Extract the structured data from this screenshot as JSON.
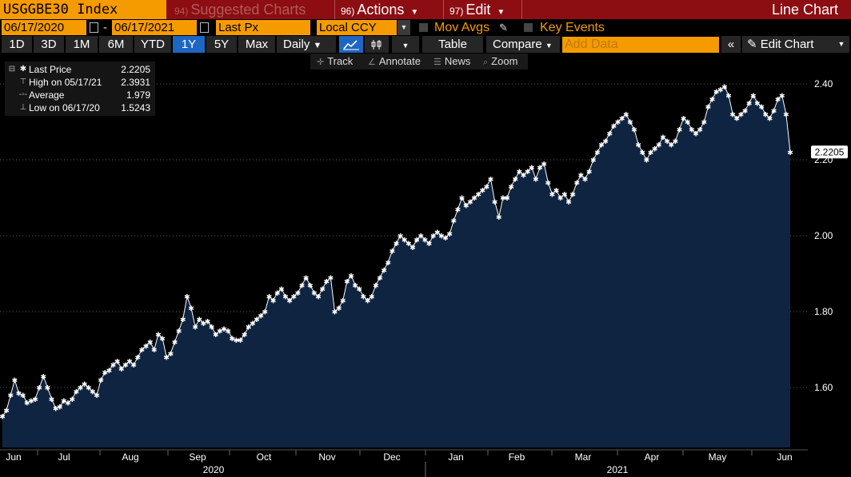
{
  "header": {
    "ticker": "USGGBE30 Index",
    "suggested": {
      "num": "94)",
      "label": "Suggested Charts"
    },
    "actions": {
      "num": "96)",
      "label": "Actions"
    },
    "edit": {
      "num": "97)",
      "label": "Edit"
    },
    "chart_type": "Line Chart"
  },
  "date_bar": {
    "start_date": "06/17/2020",
    "end_date": "06/17/2021",
    "field": "Last Px",
    "currency": "Local CCY",
    "mov_avgs": "Mov Avgs",
    "key_events": "Key Events"
  },
  "range_bar": {
    "buttons": [
      "1D",
      "3D",
      "1M",
      "6M",
      "YTD",
      "1Y",
      "5Y",
      "Max"
    ],
    "active": "1Y",
    "frequency": "Daily",
    "table": "Table",
    "compare": "Compare",
    "add_data_placeholder": "Add Data",
    "edit_chart": "Edit Chart"
  },
  "tools": [
    "Track",
    "Annotate",
    "News",
    "Zoom"
  ],
  "legend": {
    "rows": [
      {
        "label": "Last Price",
        "value": "2.2205"
      },
      {
        "label": "High on 05/17/21",
        "value": "2.3931"
      },
      {
        "label": "Average",
        "value": "1.979"
      },
      {
        "label": "Low on 06/17/20",
        "value": "1.5243"
      }
    ]
  },
  "last_value_label": "2.2205",
  "colors": {
    "header_bg": "#8c0d12",
    "field_orange": "#f59b00",
    "area_fill": "#0f2440",
    "line": "#ffffff",
    "active_button": "#1e66c4"
  },
  "chart_data": {
    "type": "area",
    "title": "USGGBE30 Index",
    "xlabel": "",
    "ylabel": "",
    "ylim": [
      1.45,
      2.47
    ],
    "yticks": [
      "1.60",
      "1.80",
      "2.00",
      "2.20",
      "2.40"
    ],
    "xticks": [
      "Jun",
      "Jul",
      "Aug",
      "Sep",
      "Oct",
      "Nov",
      "Dec",
      "Jan",
      "Feb",
      "Mar",
      "Apr",
      "May",
      "Jun"
    ],
    "year_labels": [
      "2020",
      "2021"
    ],
    "grid": true,
    "series": [
      {
        "values": [
          1.524,
          1.54,
          1.58,
          1.62,
          1.585,
          1.58,
          1.56,
          1.565,
          1.57,
          1.6,
          1.63,
          1.6,
          1.57,
          1.545,
          1.55,
          1.565,
          1.56,
          1.57,
          1.59,
          1.6,
          1.61,
          1.6,
          1.59,
          1.58,
          1.62,
          1.64,
          1.645,
          1.66,
          1.67,
          1.65,
          1.66,
          1.67,
          1.66,
          1.68,
          1.7,
          1.71,
          1.72,
          1.7,
          1.74,
          1.73,
          1.68,
          1.69,
          1.72,
          1.75,
          1.78,
          1.84,
          1.81,
          1.76,
          1.78,
          1.77,
          1.775,
          1.76,
          1.74,
          1.75,
          1.755,
          1.75,
          1.73,
          1.725,
          1.725,
          1.74,
          1.76,
          1.77,
          1.78,
          1.79,
          1.8,
          1.84,
          1.83,
          1.85,
          1.86,
          1.84,
          1.83,
          1.84,
          1.85,
          1.87,
          1.89,
          1.87,
          1.85,
          1.84,
          1.86,
          1.88,
          1.89,
          1.8,
          1.81,
          1.83,
          1.88,
          1.895,
          1.87,
          1.86,
          1.84,
          1.83,
          1.84,
          1.87,
          1.89,
          1.91,
          1.93,
          1.96,
          1.98,
          2.0,
          1.99,
          1.98,
          1.97,
          1.99,
          2.0,
          1.99,
          1.98,
          2.0,
          2.01,
          2.0,
          1.995,
          2.005,
          2.04,
          2.07,
          2.1,
          2.08,
          2.09,
          2.1,
          2.11,
          2.12,
          2.13,
          2.15,
          2.09,
          2.05,
          2.1,
          2.1,
          2.13,
          2.15,
          2.17,
          2.16,
          2.17,
          2.18,
          2.15,
          2.18,
          2.19,
          2.14,
          2.11,
          2.12,
          2.1,
          2.11,
          2.09,
          2.11,
          2.14,
          2.16,
          2.15,
          2.17,
          2.2,
          2.22,
          2.24,
          2.25,
          2.27,
          2.29,
          2.3,
          2.31,
          2.32,
          2.3,
          2.28,
          2.24,
          2.22,
          2.2,
          2.22,
          2.23,
          2.24,
          2.26,
          2.25,
          2.24,
          2.25,
          2.28,
          2.31,
          2.3,
          2.28,
          2.27,
          2.28,
          2.3,
          2.34,
          2.36,
          2.38,
          2.385,
          2.393,
          2.37,
          2.32,
          2.31,
          2.32,
          2.33,
          2.35,
          2.37,
          2.35,
          2.34,
          2.32,
          2.31,
          2.33,
          2.36,
          2.37,
          2.32,
          2.2205
        ]
      }
    ]
  }
}
